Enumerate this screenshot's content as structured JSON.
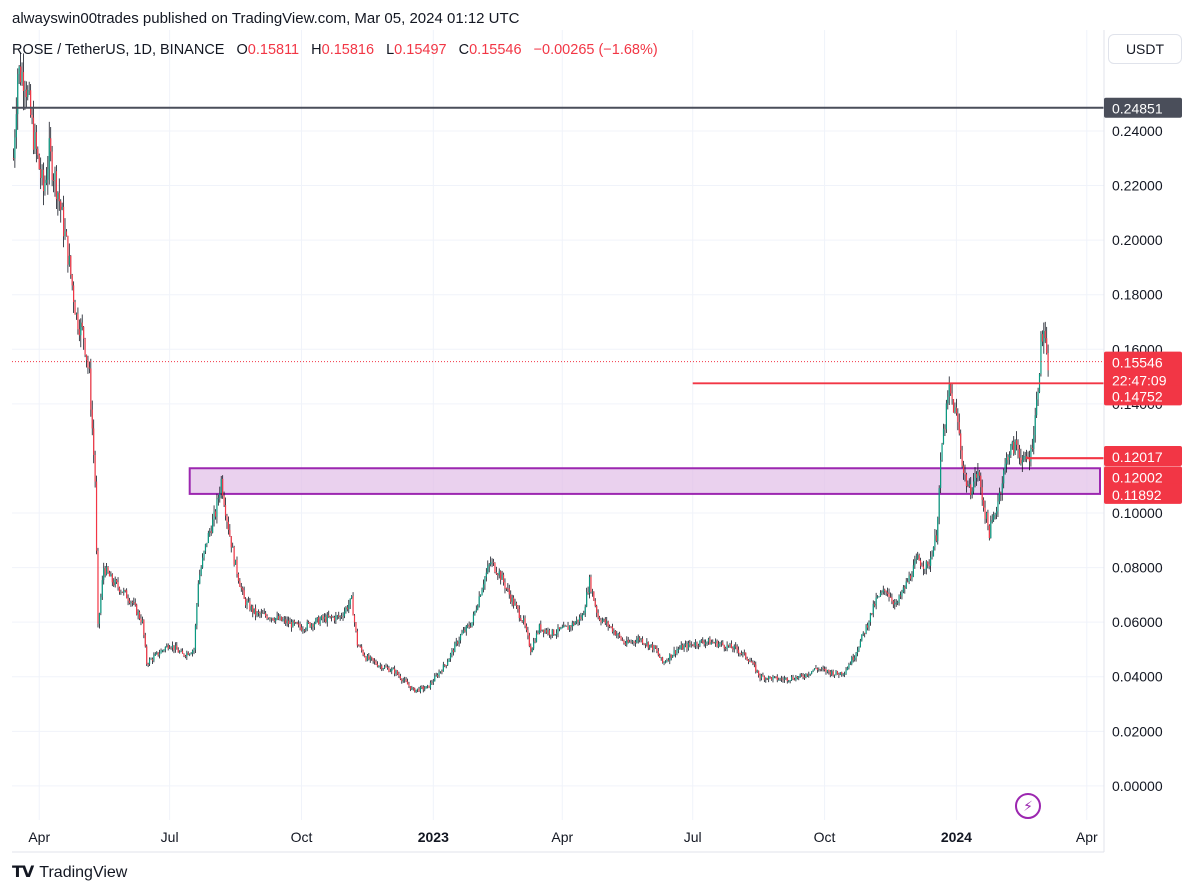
{
  "header": {
    "publish_line": "alwayswin00trades published on TradingView.com, Mar 05, 2024 01:12 UTC"
  },
  "legend": {
    "symbol": "ROSE / TetherUS, 1D, BINANCE",
    "o_label": "O",
    "o_value": "0.15811",
    "h_label": "H",
    "h_value": "0.15816",
    "l_label": "L",
    "l_value": "0.15497",
    "c_label": "C",
    "c_value": "0.15546",
    "change": "−0.00265 (−1.68%)"
  },
  "currency": "USDT",
  "footer": {
    "brand": "TradingView",
    "brand_icon": "tradingview-logo-icon"
  },
  "bolt_icon": "lightning-icon",
  "colors": {
    "up": "#089981",
    "down": "#f23645",
    "zone": "#9c27b0",
    "zone_fill": "#e1bee7",
    "level_dark": "#4a4e5a",
    "level_red": "#f23645",
    "grid": "#f0f3fa"
  },
  "chart_data": {
    "type": "candlestick",
    "yaxis_ticks": [
      "0.24000",
      "0.22000",
      "0.20000",
      "0.18000",
      "0.16000",
      "0.14000",
      "0.10000",
      "0.08000",
      "0.06000",
      "0.04000",
      "0.02000",
      "0.00000"
    ],
    "ylim": [
      -0.0125,
      0.277
    ],
    "xaxis_ticks": [
      {
        "label": "Apr",
        "date": "2022-04-01",
        "bold": false
      },
      {
        "label": "Jul",
        "date": "2022-07-01",
        "bold": false
      },
      {
        "label": "Oct",
        "date": "2022-10-01",
        "bold": false
      },
      {
        "label": "2023",
        "date": "2023-01-01",
        "bold": true
      },
      {
        "label": "Apr",
        "date": "2023-04-01",
        "bold": false
      },
      {
        "label": "Jul",
        "date": "2023-07-01",
        "bold": false
      },
      {
        "label": "Oct",
        "date": "2023-10-01",
        "bold": false
      },
      {
        "label": "2024",
        "date": "2024-01-01",
        "bold": true
      },
      {
        "label": "Apr",
        "date": "2024-04-01",
        "bold": false
      }
    ],
    "xlim": [
      "2022-03-13",
      "2024-04-13"
    ],
    "price_path": [
      [
        "2022-03-14",
        0.23
      ],
      [
        "2022-03-17",
        0.262
      ],
      [
        "2022-03-22",
        0.26
      ],
      [
        "2022-03-28",
        0.238
      ],
      [
        "2022-04-04",
        0.218
      ],
      [
        "2022-04-08",
        0.232
      ],
      [
        "2022-04-14",
        0.218
      ],
      [
        "2022-04-21",
        0.195
      ],
      [
        "2022-04-27",
        0.172
      ],
      [
        "2022-05-02",
        0.165
      ],
      [
        "2022-05-06",
        0.15
      ],
      [
        "2022-05-10",
        0.112
      ],
      [
        "2022-05-12",
        0.058
      ],
      [
        "2022-05-16",
        0.08
      ],
      [
        "2022-05-22",
        0.075
      ],
      [
        "2022-05-28",
        0.072
      ],
      [
        "2022-06-04",
        0.068
      ],
      [
        "2022-06-12",
        0.06
      ],
      [
        "2022-06-15",
        0.045
      ],
      [
        "2022-06-22",
        0.048
      ],
      [
        "2022-07-01",
        0.052
      ],
      [
        "2022-07-10",
        0.048
      ],
      [
        "2022-07-18",
        0.05
      ],
      [
        "2022-07-21",
        0.075
      ],
      [
        "2022-07-27",
        0.09
      ],
      [
        "2022-08-02",
        0.1
      ],
      [
        "2022-08-06",
        0.112
      ],
      [
        "2022-08-10",
        0.098
      ],
      [
        "2022-08-15",
        0.083
      ],
      [
        "2022-08-22",
        0.068
      ],
      [
        "2022-08-30",
        0.063
      ],
      [
        "2022-09-10",
        0.062
      ],
      [
        "2022-09-20",
        0.06
      ],
      [
        "2022-10-01",
        0.058
      ],
      [
        "2022-10-15",
        0.061
      ],
      [
        "2022-10-28",
        0.062
      ],
      [
        "2022-11-05",
        0.068
      ],
      [
        "2022-11-09",
        0.052
      ],
      [
        "2022-11-15",
        0.047
      ],
      [
        "2022-11-25",
        0.044
      ],
      [
        "2022-12-05",
        0.042
      ],
      [
        "2022-12-18",
        0.035
      ],
      [
        "2022-12-28",
        0.036
      ],
      [
        "2023-01-10",
        0.045
      ],
      [
        "2023-01-20",
        0.055
      ],
      [
        "2023-01-28",
        0.06
      ],
      [
        "2023-02-05",
        0.075
      ],
      [
        "2023-02-10",
        0.082
      ],
      [
        "2023-02-16",
        0.078
      ],
      [
        "2023-02-25",
        0.068
      ],
      [
        "2023-03-05",
        0.06
      ],
      [
        "2023-03-10",
        0.05
      ],
      [
        "2023-03-16",
        0.058
      ],
      [
        "2023-03-25",
        0.056
      ],
      [
        "2023-04-05",
        0.058
      ],
      [
        "2023-04-15",
        0.062
      ],
      [
        "2023-04-20",
        0.075
      ],
      [
        "2023-04-26",
        0.062
      ],
      [
        "2023-05-05",
        0.058
      ],
      [
        "2023-05-15",
        0.052
      ],
      [
        "2023-05-25",
        0.054
      ],
      [
        "2023-06-05",
        0.05
      ],
      [
        "2023-06-10",
        0.045
      ],
      [
        "2023-06-20",
        0.05
      ],
      [
        "2023-07-01",
        0.052
      ],
      [
        "2023-07-10",
        0.053
      ],
      [
        "2023-07-20",
        0.052
      ],
      [
        "2023-08-01",
        0.05
      ],
      [
        "2023-08-10",
        0.046
      ],
      [
        "2023-08-17",
        0.04
      ],
      [
        "2023-09-01",
        0.039
      ],
      [
        "2023-09-15",
        0.04
      ],
      [
        "2023-09-25",
        0.043
      ],
      [
        "2023-10-10",
        0.041
      ],
      [
        "2023-10-15",
        0.042
      ],
      [
        "2023-10-22",
        0.048
      ],
      [
        "2023-10-30",
        0.058
      ],
      [
        "2023-11-06",
        0.068
      ],
      [
        "2023-11-13",
        0.072
      ],
      [
        "2023-11-20",
        0.066
      ],
      [
        "2023-11-28",
        0.075
      ],
      [
        "2023-12-05",
        0.083
      ],
      [
        "2023-12-12",
        0.08
      ],
      [
        "2023-12-18",
        0.092
      ],
      [
        "2023-12-22",
        0.125
      ],
      [
        "2023-12-27",
        0.145
      ],
      [
        "2024-01-02",
        0.133
      ],
      [
        "2024-01-06",
        0.115
      ],
      [
        "2024-01-10",
        0.108
      ],
      [
        "2024-01-16",
        0.115
      ],
      [
        "2024-01-21",
        0.1
      ],
      [
        "2024-01-24",
        0.093
      ],
      [
        "2024-01-28",
        0.1
      ],
      [
        "2024-02-02",
        0.112
      ],
      [
        "2024-02-06",
        0.122
      ],
      [
        "2024-02-12",
        0.125
      ],
      [
        "2024-02-17",
        0.118
      ],
      [
        "2024-02-22",
        0.122
      ],
      [
        "2024-02-26",
        0.14
      ],
      [
        "2024-02-29",
        0.162
      ],
      [
        "2024-03-02",
        0.167
      ],
      [
        "2024-03-04",
        0.155
      ]
    ],
    "last_date": "2024-03-05",
    "zone": {
      "start_date": "2022-07-15",
      "top": 0.1164,
      "bottom": 0.107
    },
    "levels": [
      {
        "price": 0.24851,
        "label": "0.24851",
        "start_date": "2022-03-13",
        "color": "dark"
      },
      {
        "price": 0.14752,
        "label": "0.14752",
        "start_date": "2023-07-01",
        "color": "red"
      },
      {
        "price": 0.12017,
        "label": "0.12017",
        "start_date": "2024-02-19",
        "color": "red"
      },
      {
        "price": 0.12002,
        "label": "0.12002",
        "start_date": "2024-02-19",
        "color": "red"
      }
    ],
    "zone_label": "0.11892",
    "current_price": {
      "price": 0.15546,
      "label": "0.15546",
      "countdown": "22:47:09"
    }
  }
}
